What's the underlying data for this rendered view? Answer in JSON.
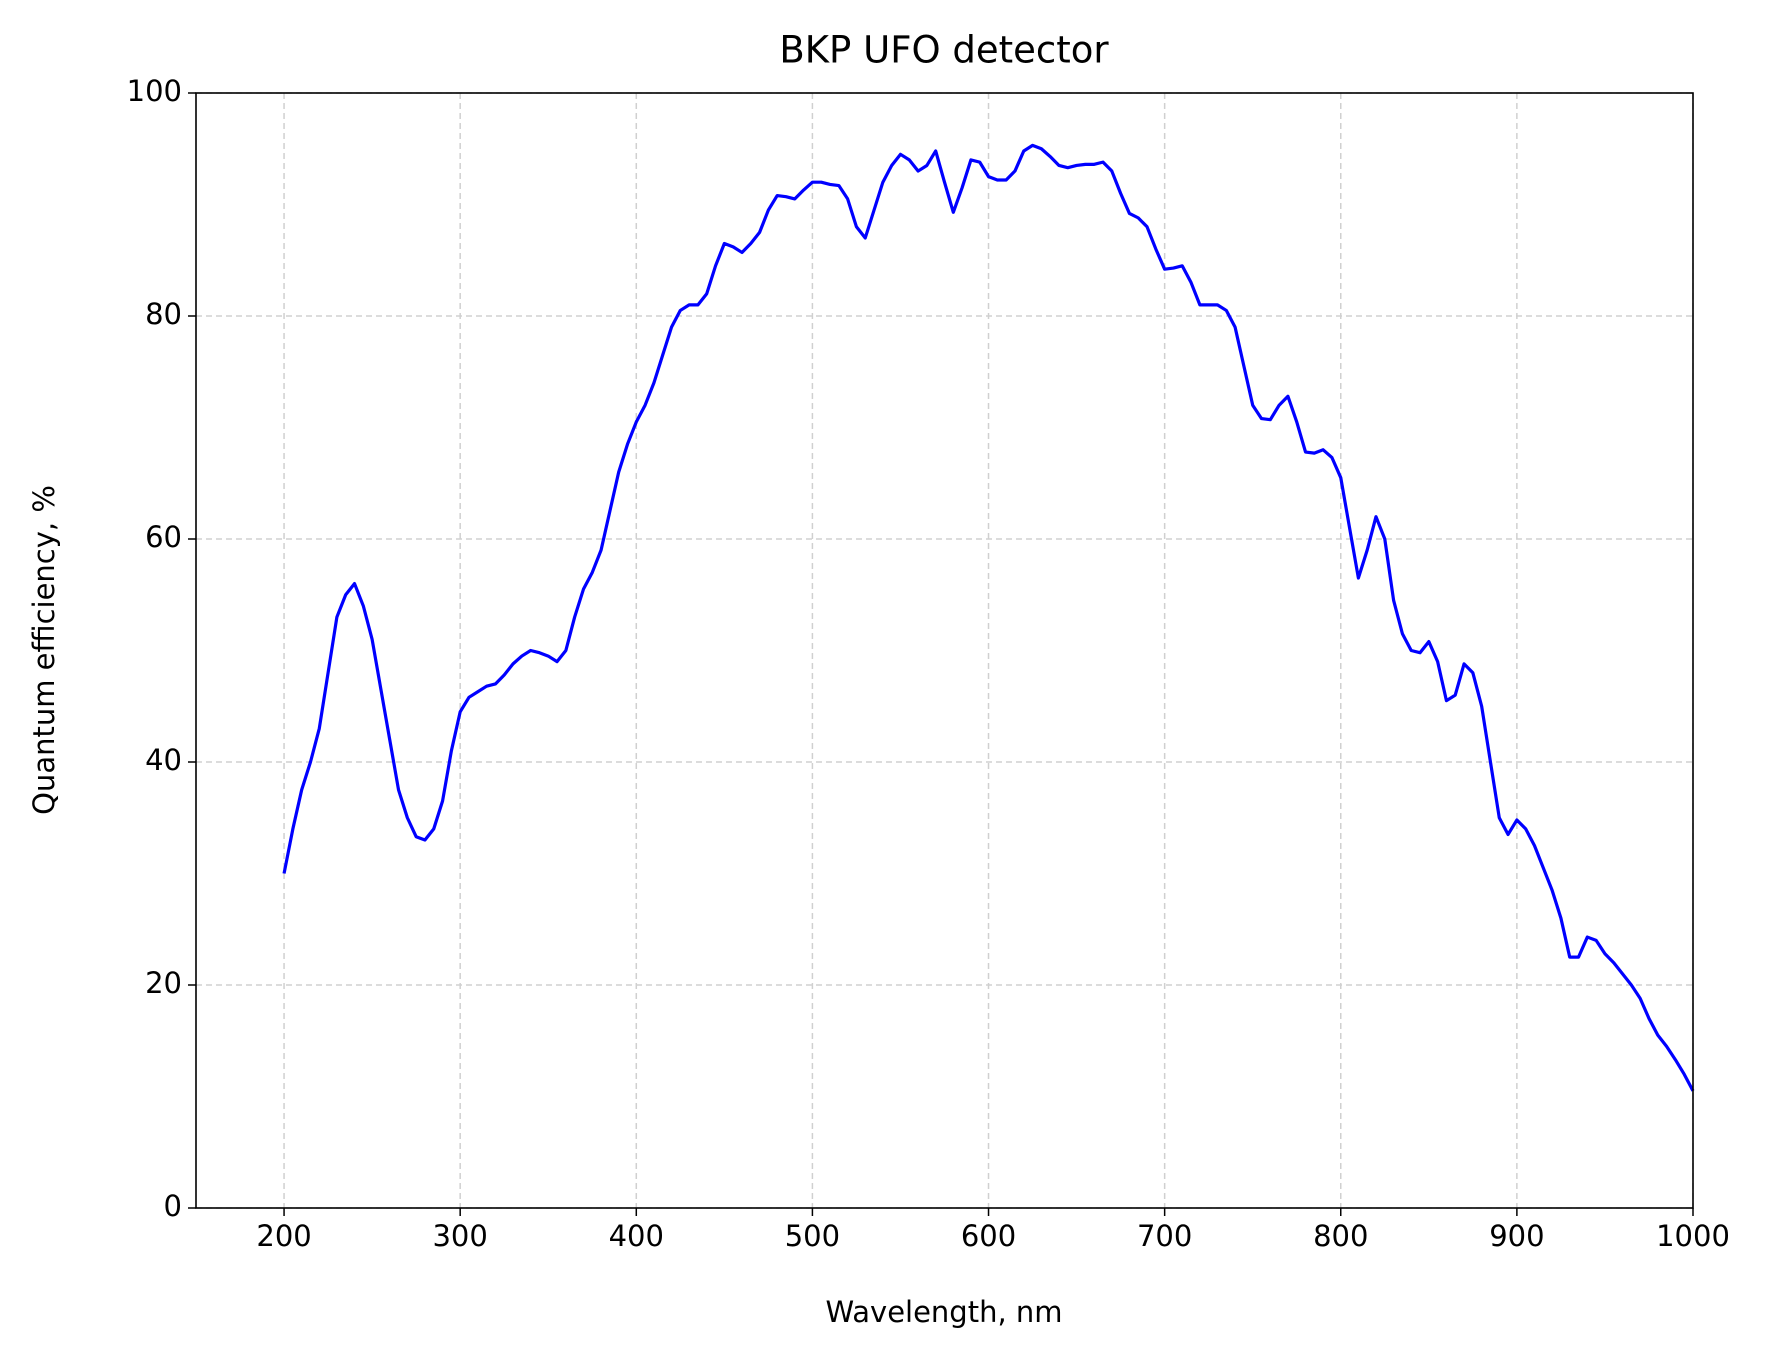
{
  "chart_data": {
    "type": "line",
    "title": "BKP UFO detector",
    "xlabel": "Wavelength, nm",
    "ylabel": "Quantum efficiency, %",
    "xlim": [
      150,
      1000
    ],
    "ylim": [
      0,
      100
    ],
    "xticks": [
      200,
      300,
      400,
      500,
      600,
      700,
      800,
      900,
      1000
    ],
    "yticks": [
      0,
      20,
      40,
      60,
      80,
      100
    ],
    "grid": true,
    "x": [
      200,
      205,
      210,
      215,
      220,
      225,
      230,
      235,
      240,
      245,
      250,
      255,
      260,
      265,
      270,
      275,
      280,
      285,
      290,
      295,
      300,
      305,
      310,
      315,
      320,
      325,
      330,
      335,
      340,
      345,
      350,
      355,
      360,
      365,
      370,
      375,
      380,
      385,
      390,
      395,
      400,
      405,
      410,
      415,
      420,
      425,
      430,
      435,
      440,
      445,
      450,
      455,
      460,
      465,
      470,
      475,
      480,
      485,
      490,
      495,
      500,
      505,
      510,
      515,
      520,
      525,
      530,
      535,
      540,
      545,
      550,
      555,
      560,
      565,
      570,
      575,
      580,
      585,
      590,
      595,
      600,
      605,
      610,
      615,
      620,
      625,
      630,
      635,
      640,
      645,
      650,
      655,
      660,
      665,
      670,
      675,
      680,
      685,
      690,
      695,
      700,
      705,
      710,
      715,
      720,
      725,
      730,
      735,
      740,
      745,
      750,
      755,
      760,
      765,
      770,
      775,
      780,
      785,
      790,
      795,
      800,
      805,
      810,
      815,
      820,
      825,
      830,
      835,
      840,
      845,
      850,
      855,
      860,
      865,
      870,
      875,
      880,
      885,
      890,
      895,
      900,
      905,
      910,
      915,
      920,
      925,
      930,
      935,
      940,
      945,
      950,
      955,
      960,
      965,
      970,
      975,
      980,
      985,
      990,
      995,
      1000
    ],
    "series": [
      {
        "color": "#0000ff",
        "values": [
          30,
          34,
          37.5,
          40,
          43,
          48,
          53,
          55,
          56,
          54,
          51,
          46.5,
          42,
          37.5,
          35,
          33.3,
          33,
          34,
          36.5,
          41,
          44.5,
          45.8,
          46.3,
          46.8,
          47,
          47.8,
          48.8,
          49.5,
          50,
          49.8,
          49.5,
          49,
          50,
          53,
          55.5,
          57,
          59,
          62.5,
          66,
          68.5,
          70.5,
          72,
          74,
          76.5,
          79,
          80.5,
          81,
          81,
          82,
          84.5,
          86.5,
          86.2,
          85.7,
          86.5,
          87.5,
          89.5,
          90.8,
          90.7,
          90.5,
          91.3,
          92,
          92,
          91.8,
          91.7,
          90.5,
          88,
          87,
          89.5,
          92,
          93.5,
          94.5,
          94,
          93,
          93.5,
          94.8,
          92,
          89.3,
          91.5,
          94,
          93.8,
          92.5,
          92.2,
          92.2,
          93,
          94.8,
          95.3,
          95,
          94.3,
          93.5,
          93.3,
          93.5,
          93.6,
          93.6,
          93.8,
          93,
          91,
          89.2,
          88.8,
          88,
          86,
          84.2,
          84.3,
          84.5,
          83,
          81,
          81,
          81,
          80.5,
          79,
          75.5,
          72,
          70.8,
          70.7,
          72,
          72.8,
          70.5,
          67.8,
          67.7,
          68,
          67.3,
          65.5,
          61,
          56.5,
          59,
          62,
          60,
          54.5,
          51.5,
          50,
          49.8,
          50.8,
          49,
          45.5,
          46,
          48.8,
          48,
          45,
          40,
          35,
          33.5,
          34.8,
          34,
          32.5,
          30.5,
          28.5,
          26,
          22.5,
          22.5,
          24.3,
          24,
          22.8,
          22,
          21,
          20,
          18.8,
          17,
          15.5,
          14.5,
          13.3,
          12,
          10.5
        ]
      }
    ]
  }
}
